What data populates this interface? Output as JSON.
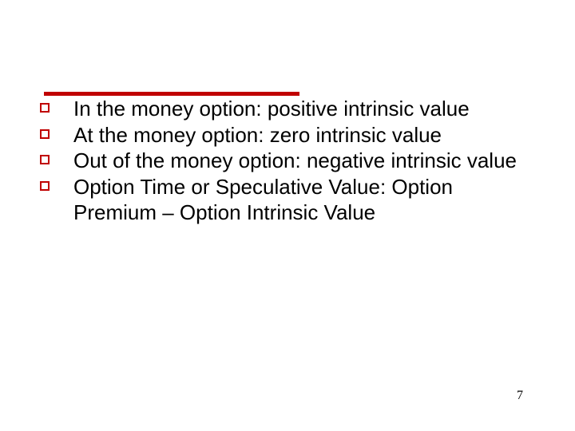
{
  "style": {
    "accent_color": "#c00000",
    "text_color": "#000000",
    "background_color": "#ffffff",
    "body_font_family": "Verdana",
    "body_font_size": 26,
    "bullet_marker_size": 12,
    "bullet_marker_border_width": 2,
    "top_rule_width": 320,
    "top_rule_height": 5
  },
  "bullets": [
    {
      "text": "In the money option: positive intrinsic value"
    },
    {
      "text": "At the money option: zero intrinsic value"
    },
    {
      "text": "Out of the money option: negative intrinsic value"
    },
    {
      "text": "Option Time or Speculative Value: Option Premium – Option Intrinsic Value"
    }
  ],
  "page_number": "7"
}
